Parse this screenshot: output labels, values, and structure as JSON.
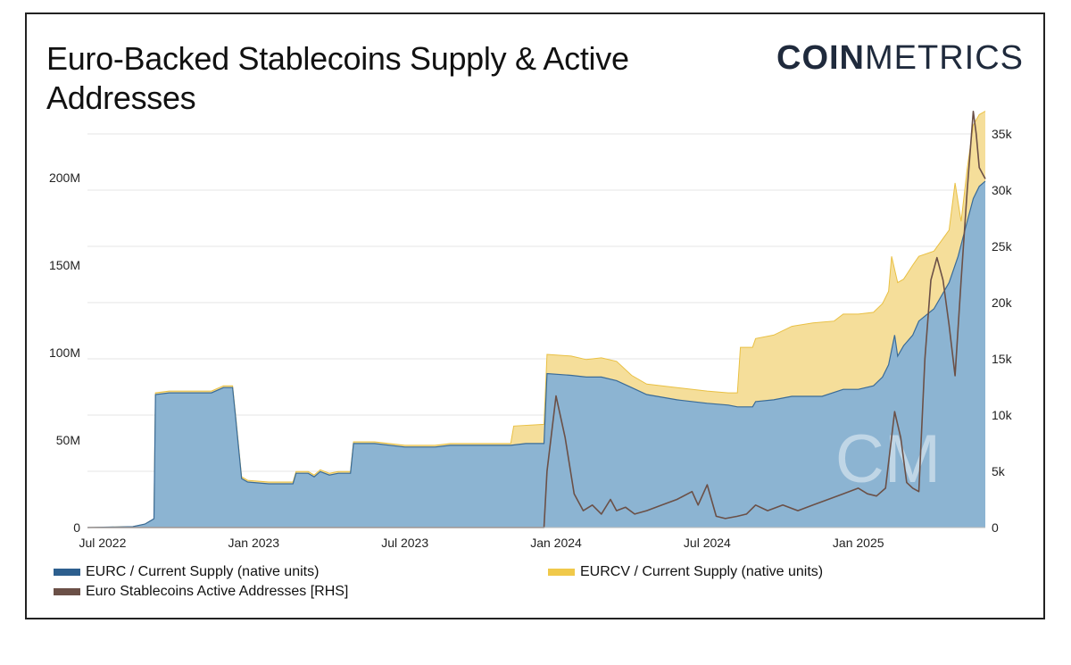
{
  "header": {
    "title": "Euro-Backed Stablecoins Supply & Active Addresses",
    "brand_bold": "COIN",
    "brand_light": "METRICS",
    "watermark": "CM"
  },
  "chart_data": {
    "type": "area",
    "title": "Euro-Backed Stablecoins Supply & Active Addresses",
    "x_ticks": [
      "Jul 2022",
      "Jan 2023",
      "Jul 2023",
      "Jan 2024",
      "Jul 2024",
      "Jan 2025"
    ],
    "x_range": [
      2022.45,
      2025.42
    ],
    "y_left": {
      "ticks": [
        "0",
        "50M",
        "100M",
        "150M",
        "200M"
      ],
      "tick_values": [
        0,
        50,
        100,
        150,
        200
      ],
      "range": [
        0,
        225
      ],
      "unit": "M"
    },
    "y_right": {
      "ticks": [
        "0",
        "5k",
        "10k",
        "15k",
        "20k",
        "25k",
        "30k",
        "35k"
      ],
      "tick_values": [
        0,
        5,
        10,
        15,
        20,
        25,
        30,
        35
      ],
      "range": [
        0,
        35
      ],
      "unit": "k"
    },
    "grid": true,
    "legend_position": "bottom",
    "series": [
      {
        "name": "EURC / Current Supply (native units)",
        "axis": "left",
        "color": "#8cb4d2",
        "line_color": "#3a6b97",
        "points": [
          [
            2022.45,
            0
          ],
          [
            2022.6,
            0.5
          ],
          [
            2022.64,
            2
          ],
          [
            2022.66,
            4
          ],
          [
            2022.67,
            5
          ],
          [
            2022.675,
            76
          ],
          [
            2022.72,
            77
          ],
          [
            2022.8,
            77
          ],
          [
            2022.86,
            77
          ],
          [
            2022.9,
            80
          ],
          [
            2022.93,
            80
          ],
          [
            2022.94,
            63
          ],
          [
            2022.96,
            28
          ],
          [
            2022.98,
            26
          ],
          [
            2023.05,
            25
          ],
          [
            2023.13,
            25
          ],
          [
            2023.14,
            31
          ],
          [
            2023.18,
            31
          ],
          [
            2023.2,
            29
          ],
          [
            2023.22,
            32
          ],
          [
            2023.25,
            30
          ],
          [
            2023.28,
            31
          ],
          [
            2023.32,
            31
          ],
          [
            2023.33,
            48
          ],
          [
            2023.4,
            48
          ],
          [
            2023.5,
            46
          ],
          [
            2023.6,
            46
          ],
          [
            2023.65,
            47
          ],
          [
            2023.75,
            47
          ],
          [
            2023.85,
            47
          ],
          [
            2023.9,
            48
          ],
          [
            2023.96,
            48
          ],
          [
            2023.97,
            88
          ],
          [
            2024.05,
            87
          ],
          [
            2024.1,
            86
          ],
          [
            2024.15,
            86
          ],
          [
            2024.2,
            84
          ],
          [
            2024.25,
            80
          ],
          [
            2024.3,
            76
          ],
          [
            2024.4,
            73
          ],
          [
            2024.5,
            71
          ],
          [
            2024.57,
            70
          ],
          [
            2024.6,
            69
          ],
          [
            2024.65,
            69
          ],
          [
            2024.66,
            72
          ],
          [
            2024.72,
            73
          ],
          [
            2024.78,
            75
          ],
          [
            2024.82,
            75
          ],
          [
            2024.88,
            75
          ],
          [
            2024.95,
            79
          ],
          [
            2025.0,
            79
          ],
          [
            2025.05,
            81
          ],
          [
            2025.08,
            86
          ],
          [
            2025.1,
            93
          ],
          [
            2025.12,
            110
          ],
          [
            2025.13,
            98
          ],
          [
            2025.15,
            104
          ],
          [
            2025.18,
            110
          ],
          [
            2025.2,
            118
          ],
          [
            2025.25,
            125
          ],
          [
            2025.3,
            140
          ],
          [
            2025.33,
            155
          ],
          [
            2025.36,
            175
          ],
          [
            2025.38,
            188
          ],
          [
            2025.4,
            195
          ],
          [
            2025.42,
            198
          ]
        ]
      },
      {
        "name": "EURCV / Current Supply (native units)",
        "axis": "left",
        "color": "#f5de9a",
        "line_color": "#e9c043",
        "points": [
          [
            2022.45,
            0
          ],
          [
            2022.6,
            0.5
          ],
          [
            2022.64,
            2
          ],
          [
            2022.66,
            4
          ],
          [
            2022.67,
            5
          ],
          [
            2022.675,
            77
          ],
          [
            2022.72,
            78
          ],
          [
            2022.8,
            78
          ],
          [
            2022.86,
            78
          ],
          [
            2022.9,
            81
          ],
          [
            2022.93,
            81
          ],
          [
            2022.94,
            64
          ],
          [
            2022.96,
            29
          ],
          [
            2022.98,
            27
          ],
          [
            2023.05,
            26
          ],
          [
            2023.13,
            26
          ],
          [
            2023.14,
            32
          ],
          [
            2023.18,
            32
          ],
          [
            2023.2,
            30
          ],
          [
            2023.22,
            33
          ],
          [
            2023.25,
            31
          ],
          [
            2023.28,
            32
          ],
          [
            2023.32,
            32
          ],
          [
            2023.33,
            49
          ],
          [
            2023.4,
            49
          ],
          [
            2023.5,
            47
          ],
          [
            2023.6,
            47
          ],
          [
            2023.65,
            48
          ],
          [
            2023.75,
            48
          ],
          [
            2023.85,
            48
          ],
          [
            2023.86,
            58
          ],
          [
            2023.96,
            59
          ],
          [
            2023.97,
            99
          ],
          [
            2024.05,
            98
          ],
          [
            2024.1,
            96
          ],
          [
            2024.15,
            97
          ],
          [
            2024.2,
            95
          ],
          [
            2024.25,
            87
          ],
          [
            2024.3,
            82
          ],
          [
            2024.4,
            80
          ],
          [
            2024.5,
            78
          ],
          [
            2024.57,
            77
          ],
          [
            2024.6,
            77
          ],
          [
            2024.61,
            103
          ],
          [
            2024.65,
            103
          ],
          [
            2024.66,
            108
          ],
          [
            2024.72,
            110
          ],
          [
            2024.78,
            115
          ],
          [
            2024.85,
            117
          ],
          [
            2024.92,
            118
          ],
          [
            2024.95,
            122
          ],
          [
            2025.0,
            122
          ],
          [
            2025.05,
            123
          ],
          [
            2025.08,
            128
          ],
          [
            2025.1,
            135
          ],
          [
            2025.11,
            155
          ],
          [
            2025.13,
            140
          ],
          [
            2025.15,
            142
          ],
          [
            2025.18,
            150
          ],
          [
            2025.2,
            155
          ],
          [
            2025.25,
            158
          ],
          [
            2025.3,
            170
          ],
          [
            2025.32,
            197
          ],
          [
            2025.34,
            175
          ],
          [
            2025.36,
            205
          ],
          [
            2025.38,
            230
          ],
          [
            2025.4,
            236
          ],
          [
            2025.42,
            238
          ]
        ]
      },
      {
        "name": "Euro Stablecoins Active Addresses [RHS]",
        "axis": "right",
        "color": "#6b5047",
        "points": [
          [
            2022.45,
            0
          ],
          [
            2023.96,
            0
          ],
          [
            2023.97,
            5
          ],
          [
            2024.0,
            11.7
          ],
          [
            2024.03,
            8
          ],
          [
            2024.06,
            3
          ],
          [
            2024.09,
            1.5
          ],
          [
            2024.12,
            2
          ],
          [
            2024.15,
            1.2
          ],
          [
            2024.18,
            2.5
          ],
          [
            2024.2,
            1.5
          ],
          [
            2024.23,
            1.8
          ],
          [
            2024.26,
            1.2
          ],
          [
            2024.3,
            1.5
          ],
          [
            2024.35,
            2
          ],
          [
            2024.4,
            2.5
          ],
          [
            2024.45,
            3.2
          ],
          [
            2024.47,
            2
          ],
          [
            2024.5,
            3.8
          ],
          [
            2024.53,
            1
          ],
          [
            2024.56,
            0.8
          ],
          [
            2024.6,
            1
          ],
          [
            2024.63,
            1.2
          ],
          [
            2024.66,
            2
          ],
          [
            2024.7,
            1.5
          ],
          [
            2024.75,
            2
          ],
          [
            2024.8,
            1.5
          ],
          [
            2024.85,
            2
          ],
          [
            2024.9,
            2.5
          ],
          [
            2024.95,
            3
          ],
          [
            2025.0,
            3.5
          ],
          [
            2025.03,
            3
          ],
          [
            2025.06,
            2.8
          ],
          [
            2025.09,
            3.5
          ],
          [
            2025.12,
            10.3
          ],
          [
            2025.14,
            8
          ],
          [
            2025.16,
            4
          ],
          [
            2025.18,
            3.5
          ],
          [
            2025.2,
            3.2
          ],
          [
            2025.22,
            15
          ],
          [
            2025.24,
            22
          ],
          [
            2025.26,
            24
          ],
          [
            2025.28,
            22
          ],
          [
            2025.3,
            18
          ],
          [
            2025.32,
            13.5
          ],
          [
            2025.34,
            22
          ],
          [
            2025.36,
            30
          ],
          [
            2025.38,
            37
          ],
          [
            2025.39,
            35
          ],
          [
            2025.4,
            32
          ],
          [
            2025.41,
            31.5
          ],
          [
            2025.42,
            31
          ]
        ]
      }
    ],
    "legend": [
      {
        "label": "EURC / Current Supply (native units)",
        "color": "#2d5f8e"
      },
      {
        "label": "EURCV / Current Supply (native units)",
        "color": "#f0c94a"
      },
      {
        "label": "Euro Stablecoins Active Addresses [RHS]",
        "color": "#6b5047"
      }
    ]
  }
}
